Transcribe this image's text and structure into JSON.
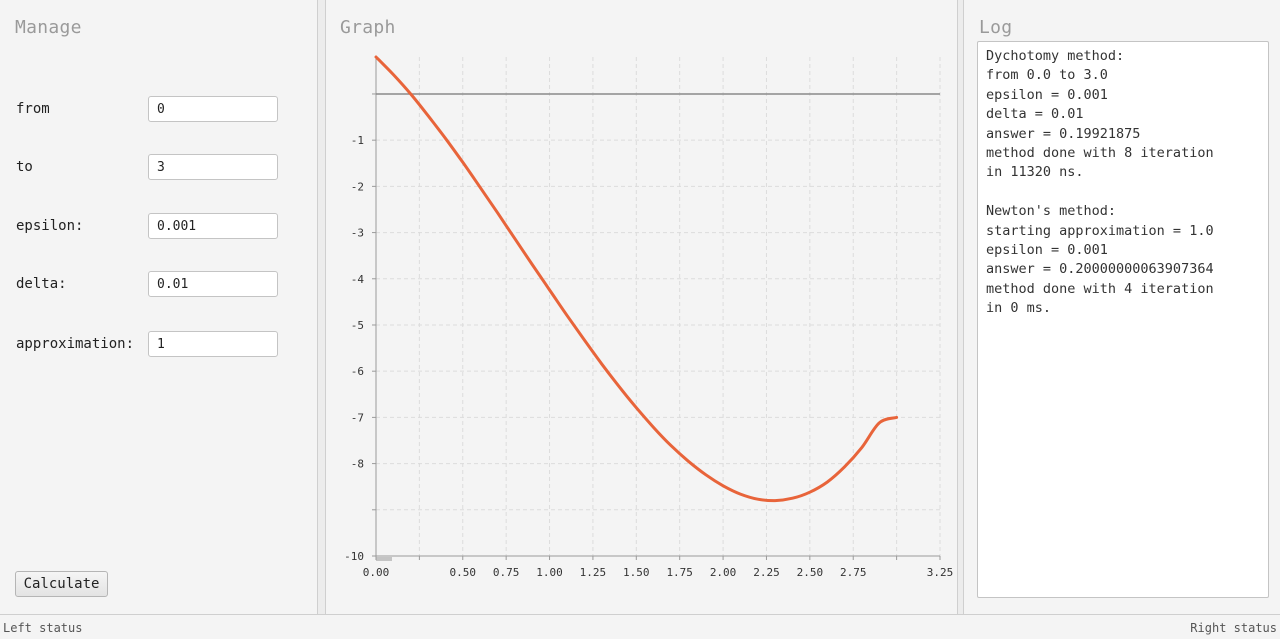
{
  "manage": {
    "title": "Manage",
    "fields": [
      {
        "label": "from",
        "value": "0"
      },
      {
        "label": "to",
        "value": "3"
      },
      {
        "label": "epsilon:",
        "value": "0.001"
      },
      {
        "label": "delta:",
        "value": "0.01"
      },
      {
        "label": "approximation:",
        "value": "1"
      }
    ],
    "calculate_label": "Calculate"
  },
  "graph": {
    "title": "Graph"
  },
  "chart_data": {
    "type": "line",
    "title": "",
    "xlabel": "",
    "ylabel": "",
    "xlim": [
      0,
      3.25
    ],
    "ylim": [
      -10,
      0.8
    ],
    "x_ticks": [
      "0.00",
      "0.50",
      "0.75",
      "1.00",
      "1.25",
      "1.50",
      "1.75",
      "2.00",
      "2.25",
      "2.50",
      "2.75",
      "3.25"
    ],
    "y_ticks": [
      "-1",
      "-2",
      "-3",
      "-4",
      "-5",
      "-6",
      "-7",
      "-8",
      "-10"
    ],
    "grid": true,
    "series": [
      {
        "color": "#e8643a",
        "x": [
          0,
          0.1,
          0.2,
          0.3,
          0.4,
          0.5,
          0.6,
          0.7,
          0.8,
          0.9,
          1.0,
          1.1,
          1.2,
          1.3,
          1.4,
          1.5,
          1.6,
          1.7,
          1.8,
          1.9,
          2.0,
          2.1,
          2.2,
          2.3,
          2.4,
          2.5,
          2.6,
          2.7,
          2.8,
          2.9,
          3.0
        ],
        "y": [
          0.8,
          0.42,
          0.0,
          -0.47,
          -0.96,
          -1.48,
          -2.02,
          -2.57,
          -3.13,
          -3.69,
          -4.24,
          -4.79,
          -5.32,
          -5.84,
          -6.33,
          -6.79,
          -7.22,
          -7.61,
          -7.95,
          -8.24,
          -8.48,
          -8.66,
          -8.77,
          -8.8,
          -8.75,
          -8.62,
          -8.4,
          -8.07,
          -7.65,
          -7.12,
          -7.0
        ]
      }
    ]
  },
  "log": {
    "title": "Log",
    "lines": [
      "Dychotomy method:",
      "from 0.0 to 3.0",
      "epsilon = 0.001",
      "delta = 0.01",
      "answer = 0.19921875",
      "method done with 8 iteration",
      "in 11320 ns.",
      "",
      "Newton's method:",
      "starting approximation = 1.0",
      "epsilon = 0.001",
      "answer = 0.20000000063907364",
      "method done with 4 iteration",
      "in 0 ms."
    ]
  },
  "status": {
    "left": "Left status",
    "right": "Right status"
  }
}
